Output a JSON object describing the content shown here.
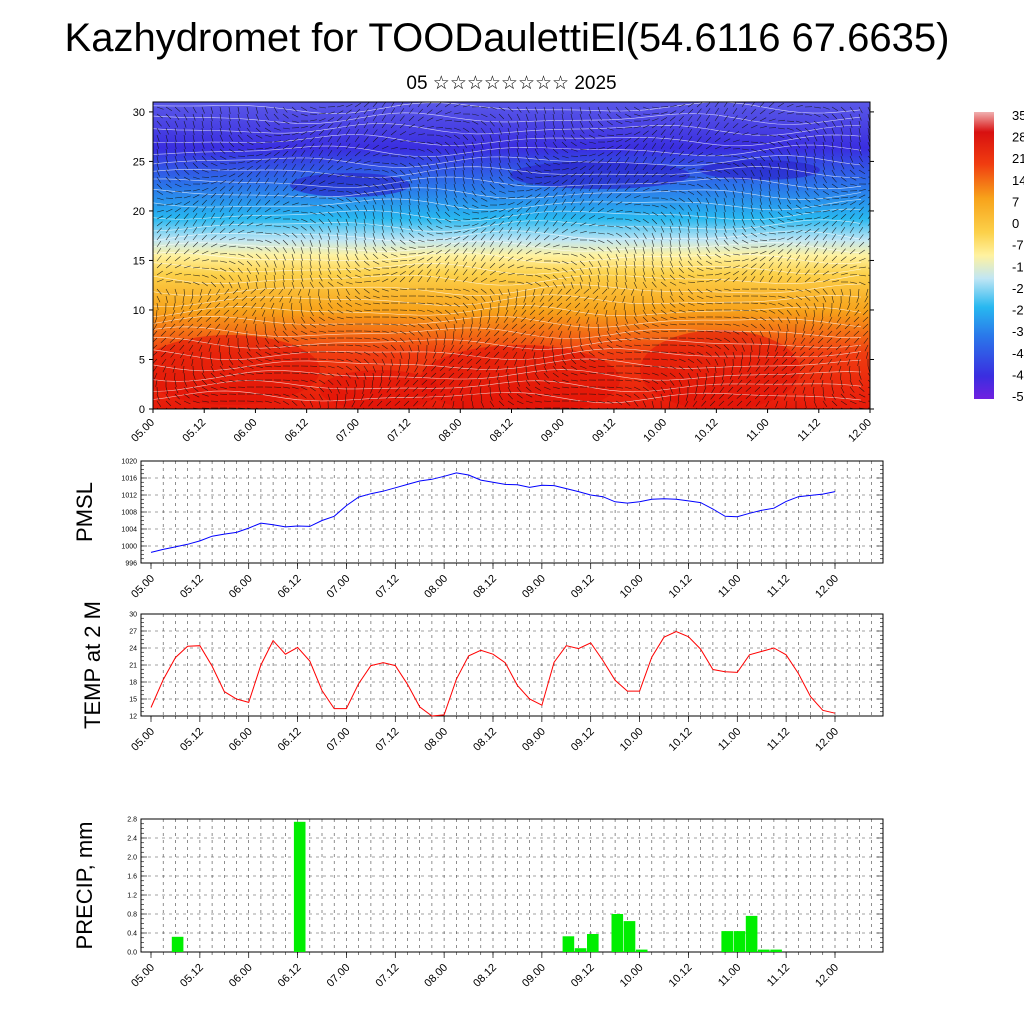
{
  "header": {
    "title": "Kazhydromet for TOODaulettiEl(54.6116 67.6635)",
    "subtitle": "05 ☆☆☆☆☆☆☆☆ 2025"
  },
  "chart_data": [
    {
      "type": "heatmap",
      "name_hint": "cross-section",
      "x_tick_labels": [
        "05.00",
        "05.12",
        "06.00",
        "06.12",
        "07.00",
        "07.12",
        "08.00",
        "08.12",
        "09.00",
        "09.12",
        "10.00",
        "10.12",
        "11.00",
        "11.12",
        "12.00"
      ],
      "y_tick_labels": [
        "0",
        "5",
        "10",
        "15",
        "20",
        "25",
        "30"
      ],
      "ylim": [
        0,
        31
      ],
      "colorbar_labels": [
        "35",
        "28",
        "21",
        "14",
        "7",
        "0",
        "-7",
        "-1",
        "-2",
        "-2",
        "-3",
        "-4",
        "-4",
        "-5"
      ],
      "colors": {
        "hot": "#e81a0a",
        "warm": "#f7a21a",
        "neutral": "#fff2a0",
        "cool": "#28b8f0",
        "cold": "#3a2ee0"
      },
      "overlay": "wind barbs"
    },
    {
      "type": "line",
      "ylabel": "PMSL",
      "x_tick_labels": [
        "05.00",
        "05.12",
        "06.00",
        "06.12",
        "07.00",
        "07.12",
        "08.00",
        "08.12",
        "09.00",
        "09.12",
        "10.00",
        "10.12",
        "11.00",
        "11.12",
        "12.00"
      ],
      "y_tick_labels": [
        "996",
        "1000",
        "1004",
        "1008",
        "1012",
        "1016",
        "1020"
      ],
      "ylim": [
        996,
        1020
      ],
      "x_hours_step": 3,
      "series": [
        {
          "color": "#0000ff",
          "values": [
            998.5,
            999.2,
            999.8,
            1000.4,
            1001.2,
            1002.3,
            1002.8,
            1003.2,
            1004.2,
            1005.4,
            1005.0,
            1004.5,
            1004.7,
            1004.6,
            1006.0,
            1007.0,
            1009.5,
            1011.5,
            1012.3,
            1012.9,
            1013.7,
            1014.5,
            1015.3,
            1015.7,
            1016.4,
            1017.2,
            1016.7,
            1015.5,
            1015.0,
            1014.5,
            1014.4,
            1013.8,
            1014.3,
            1014.2,
            1013.5,
            1012.8,
            1012.0,
            1011.6,
            1010.4,
            1010.1,
            1010.4,
            1011.0,
            1011.1,
            1011.0,
            1010.6,
            1010.2,
            1008.7,
            1007.0,
            1006.9,
            1007.7,
            1008.4,
            1008.9,
            1010.5,
            1011.6,
            1011.9,
            1012.2,
            1012.8
          ]
        }
      ]
    },
    {
      "type": "line",
      "ylabel": "TEMP at 2 M",
      "x_tick_labels": [
        "05.00",
        "05.12",
        "06.00",
        "06.12",
        "07.00",
        "07.12",
        "08.00",
        "08.12",
        "09.00",
        "09.12",
        "10.00",
        "10.12",
        "11.00",
        "11.12",
        "12.00"
      ],
      "y_tick_labels": [
        "12",
        "15",
        "18",
        "21",
        "24",
        "27",
        "30"
      ],
      "ylim": [
        12,
        30
      ],
      "x_hours_step": 3,
      "series": [
        {
          "color": "#ff0000",
          "values": [
            13.5,
            18.4,
            22.3,
            24.3,
            24.4,
            20.8,
            16.3,
            15.0,
            14.4,
            21.0,
            25.3,
            22.9,
            24.1,
            21.7,
            16.5,
            13.3,
            13.3,
            17.7,
            20.9,
            21.4,
            20.9,
            17.6,
            13.6,
            12.0,
            12.2,
            18.5,
            22.6,
            23.6,
            22.9,
            21.4,
            17.4,
            15.0,
            13.9,
            21.5,
            24.4,
            23.9,
            24.9,
            21.8,
            18.3,
            16.4,
            16.4,
            22.4,
            25.9,
            26.9,
            26.0,
            23.8,
            20.2,
            19.8,
            19.7,
            22.8,
            23.4,
            24.0,
            22.8,
            19.5,
            15.4,
            13.0,
            12.5
          ]
        }
      ]
    },
    {
      "type": "bar",
      "ylabel": "PRECIP, mm",
      "x_tick_labels": [
        "05.00",
        "05.12",
        "06.00",
        "06.12",
        "07.00",
        "07.12",
        "08.00",
        "08.12",
        "09.00",
        "09.12",
        "10.00",
        "10.12",
        "11.00",
        "11.12",
        "12.00"
      ],
      "y_tick_labels": [
        "0.0",
        "0.4",
        "0.8",
        "1.2",
        "1.6",
        "2.0",
        "2.4",
        "2.8"
      ],
      "ylim": [
        0,
        2.8
      ],
      "x_hours_step": 3,
      "color": "#00ee00",
      "values": [
        0,
        0,
        0.32,
        0,
        0,
        0,
        0,
        0,
        0,
        0,
        0,
        0,
        2.74,
        0,
        0,
        0,
        0,
        0,
        0,
        0,
        0,
        0,
        0,
        0,
        0,
        0,
        0,
        0,
        0,
        0,
        0,
        0,
        0,
        0,
        0.33,
        0.08,
        0.38,
        0,
        0.8,
        0.65,
        0.05,
        0,
        0,
        0,
        0,
        0,
        0,
        0.44,
        0.44,
        0.76,
        0.05,
        0.05,
        0,
        0,
        0,
        0,
        0
      ]
    }
  ]
}
